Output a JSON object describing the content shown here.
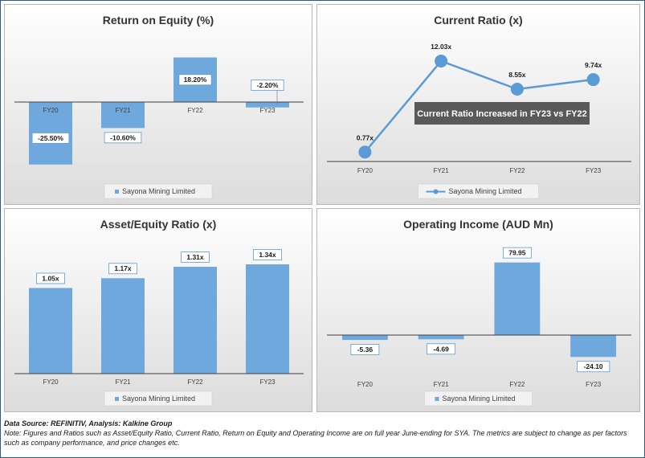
{
  "source_line": "Data Source: REFINITIV, Analysis: Kalkine Group",
  "note_line": "Note: Figures and Ratios such as Asset/Equity Ratio, Current Ratio, Return on Equity and Operating Income are on full year June-ending for SYA. The metrics are subject to change as per factors such as company performance, and price changes etc.",
  "colors": {
    "bar": "#6fa8dc",
    "line": "#5b9bd5",
    "annotation_bg": "#595959"
  },
  "chart_data": [
    {
      "id": "roe",
      "type": "bar",
      "title": "Return on Equity (%)",
      "categories": [
        "FY20",
        "FY21",
        "FY22",
        "FY23"
      ],
      "series": [
        {
          "name": "Sayona Mining Limited",
          "values": [
            -25.5,
            -10.6,
            18.2,
            -2.2
          ]
        }
      ],
      "data_labels": [
        "-25.50%",
        "-10.60%",
        "18.20%",
        "-2.20%"
      ],
      "ylim": [
        -30,
        20
      ],
      "legend": "bottom",
      "grid": false
    },
    {
      "id": "cr",
      "type": "line",
      "title": "Current Ratio (x)",
      "categories": [
        "FY20",
        "FY21",
        "FY22",
        "FY23"
      ],
      "series": [
        {
          "name": "Sayona Mining Limited",
          "values": [
            0.77,
            12.03,
            8.55,
            9.74
          ]
        }
      ],
      "data_labels": [
        "0.77x",
        "12.03x",
        "8.55x",
        "9.74x"
      ],
      "annotation": "Current Ratio Increased in FY23 vs FY22",
      "ylim": [
        0,
        14
      ],
      "legend": "bottom",
      "grid": false
    },
    {
      "id": "aer",
      "type": "bar",
      "title": "Asset/Equity Ratio (x)",
      "categories": [
        "FY20",
        "FY21",
        "FY22",
        "FY23"
      ],
      "series": [
        {
          "name": "Sayona Mining Limited",
          "values": [
            1.05,
            1.17,
            1.31,
            1.34
          ]
        }
      ],
      "data_labels": [
        "1.05x",
        "1.17x",
        "1.31x",
        "1.34x"
      ],
      "ylim": [
        0,
        1.6
      ],
      "legend": "bottom",
      "grid": false
    },
    {
      "id": "oi",
      "type": "bar",
      "title": "Operating Income (AUD Mn)",
      "categories": [
        "FY20",
        "FY21",
        "FY22",
        "FY23"
      ],
      "series": [
        {
          "name": "Sayona Mining Limited",
          "values": [
            -5.36,
            -4.69,
            79.95,
            -24.1
          ]
        }
      ],
      "data_labels": [
        "-5.36",
        "-4.69",
        "79.95",
        "-24.10"
      ],
      "ylim": [
        -40,
        100
      ],
      "legend": "bottom",
      "grid": false
    }
  ]
}
